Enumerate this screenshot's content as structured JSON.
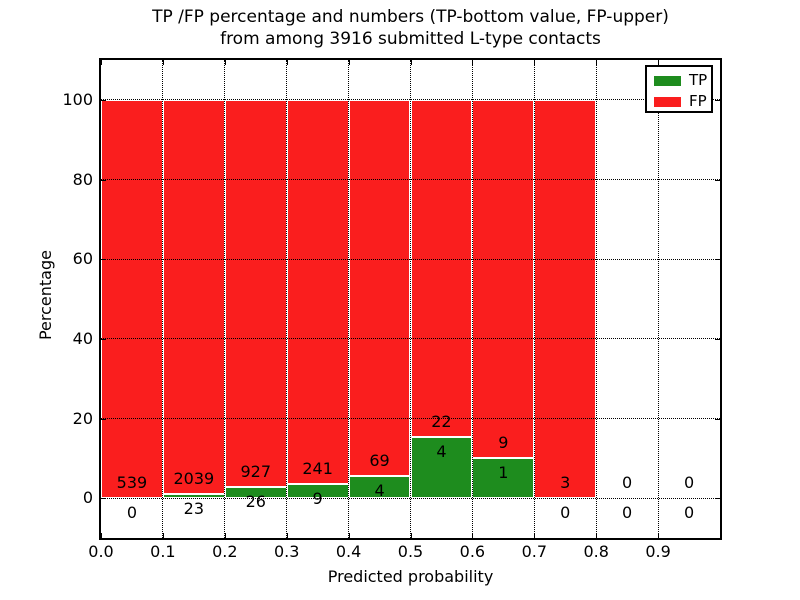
{
  "chart_data": {
    "type": "bar",
    "stacked": true,
    "normalized_to_percent": true,
    "title_lines": [
      "TP /FP percentage and numbers (TP-bottom value, FP-upper)",
      "from among 3916 submitted L-type contacts"
    ],
    "title": "TP /FP percentage and numbers (TP-bottom value, FP-upper) from among 3916 submitted L-type contacts",
    "xlabel": "Predicted probability",
    "ylabel": "Percentage",
    "xlim": [
      0.0,
      1.0
    ],
    "ylim": [
      -10,
      110
    ],
    "bar_width": 0.1,
    "grid": true,
    "bin_starts": [
      0.0,
      0.1,
      0.2,
      0.3,
      0.4,
      0.5,
      0.6,
      0.7,
      0.8,
      0.9
    ],
    "x_tick_labels": [
      "0.0",
      "0.1",
      "0.2",
      "0.3",
      "0.4",
      "0.5",
      "0.6",
      "0.7",
      "0.8",
      "0.9"
    ],
    "y_tick_values": [
      0,
      20,
      40,
      60,
      80,
      100
    ],
    "series": [
      {
        "name": "TP",
        "color": "#1e8c1e",
        "counts": [
          0,
          23,
          26,
          9,
          4,
          4,
          1,
          0,
          0,
          0
        ]
      },
      {
        "name": "FP",
        "color": "#fa1e1e",
        "counts": [
          539,
          2039,
          927,
          241,
          69,
          22,
          9,
          3,
          0,
          0
        ]
      }
    ],
    "total_contacts": 3916,
    "value_label_rule": "FP count printed above TP/FP boundary, TP count printed below it",
    "legend": {
      "position": "upper right",
      "entries": [
        {
          "label": "TP",
          "color": "#1e8c1e"
        },
        {
          "label": "FP",
          "color": "#fa1e1e"
        }
      ]
    },
    "colors": {
      "tp": "#1e8c1e",
      "fp": "#fa1e1e",
      "grid": "#000000",
      "bar_edge": "#ffffff",
      "spine": "#000000"
    }
  }
}
